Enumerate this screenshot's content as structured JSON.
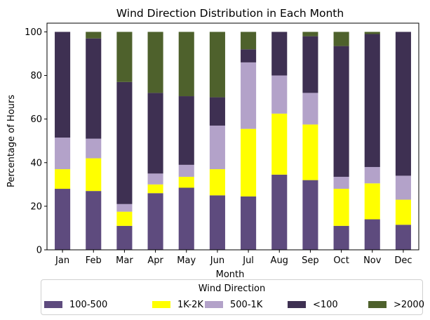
{
  "chart_data": {
    "type": "bar",
    "stacked": true,
    "title": "Wind Direction Distribution in Each Month",
    "xlabel": "Month",
    "ylabel": "Percentage of Hours",
    "ylim": [
      0,
      104
    ],
    "yticks": [
      0,
      20,
      40,
      60,
      80,
      100
    ],
    "grid": false,
    "legend_title": "Wind Direction",
    "legend_position": "below",
    "categories": [
      "Jan",
      "Feb",
      "Mar",
      "Apr",
      "May",
      "Jun",
      "Jul",
      "Aug",
      "Sep",
      "Oct",
      "Nov",
      "Dec"
    ],
    "series": [
      {
        "name": "100-500",
        "color": "#5e4b7e",
        "values": [
          28,
          27,
          11,
          26,
          28.5,
          25,
          24.5,
          34.5,
          32,
          11,
          14,
          11.5
        ]
      },
      {
        "name": "1K-2K",
        "color": "#ffff00",
        "values": [
          9,
          15,
          6.5,
          4,
          5,
          12,
          31,
          28,
          25.5,
          17,
          16.5,
          11.5
        ]
      },
      {
        "name": "500-1K",
        "color": "#b3a2c9",
        "values": [
          14.5,
          9,
          3.5,
          5,
          5.5,
          20,
          30.5,
          17.5,
          14.5,
          5.5,
          7.5,
          11
        ]
      },
      {
        "name": "<100",
        "color": "#3e3052",
        "values": [
          48.5,
          46,
          56,
          37,
          31.5,
          13,
          6,
          20,
          26,
          60,
          61,
          66
        ]
      },
      {
        "name": ">2000",
        "color": "#4e612c",
        "values": [
          0,
          3,
          23,
          28,
          29.5,
          30,
          8,
          0,
          2,
          6.5,
          1,
          0
        ]
      }
    ]
  }
}
